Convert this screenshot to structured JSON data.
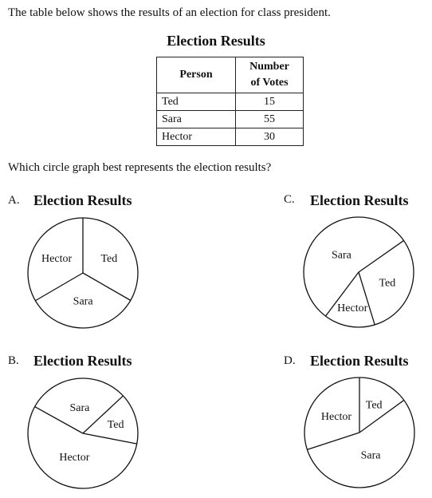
{
  "intro": "The table below shows the results of an election for class president.",
  "table": {
    "title": "Election Results",
    "headers": {
      "person": "Person",
      "votes_line1": "Number",
      "votes_line2": "of Votes"
    },
    "rows": [
      {
        "person": "Ted",
        "votes": "15"
      },
      {
        "person": "Sara",
        "votes": "55"
      },
      {
        "person": "Hector",
        "votes": "30"
      }
    ]
  },
  "question": "Which circle graph best represents the election results?",
  "options": [
    {
      "letter": "A.",
      "title": "Election Results",
      "chart_data": {
        "type": "pie",
        "title": "Election Results",
        "labels": [
          "Ted",
          "Sara",
          "Hector"
        ],
        "values": [
          33.3,
          33.3,
          33.4
        ]
      }
    },
    {
      "letter": "B.",
      "title": "Election Results",
      "chart_data": {
        "type": "pie",
        "title": "Election Results",
        "labels": [
          "Sara",
          "Ted",
          "Hector"
        ],
        "values": [
          30,
          15,
          55
        ]
      }
    },
    {
      "letter": "C.",
      "title": "Election Results",
      "chart_data": {
        "type": "pie",
        "title": "Election Results",
        "labels": [
          "Ted",
          "Hector",
          "Sara"
        ],
        "values": [
          30,
          15,
          55
        ]
      }
    },
    {
      "letter": "D.",
      "title": "Election Results",
      "chart_data": {
        "type": "pie",
        "title": "Election Results",
        "labels": [
          "Ted",
          "Sara",
          "Hector"
        ],
        "values": [
          15,
          55,
          30
        ]
      }
    }
  ]
}
